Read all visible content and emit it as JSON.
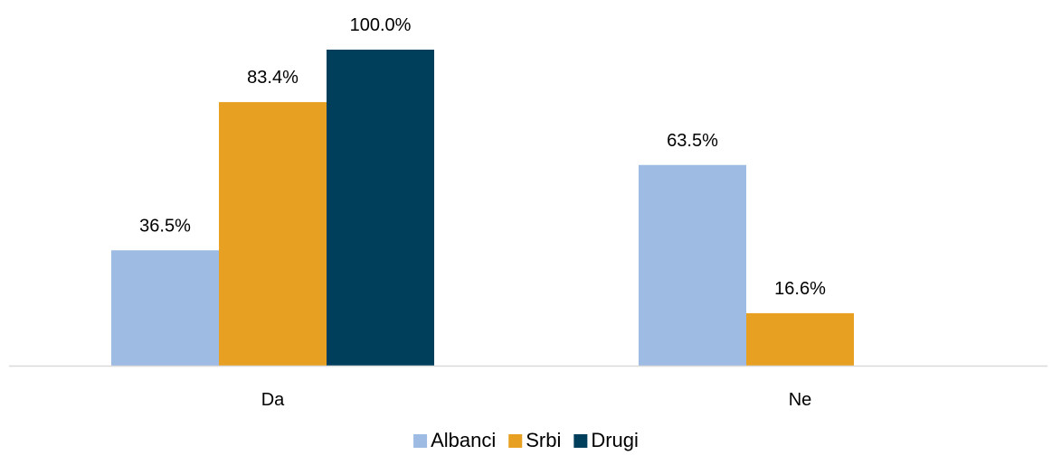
{
  "chart_data": {
    "type": "bar",
    "categories": [
      "Da",
      "Ne"
    ],
    "series": [
      {
        "name": "Albanci",
        "values": [
          36.5,
          63.5
        ],
        "labels": [
          "36.5%",
          "63.5%"
        ],
        "color": "#9dbbe3"
      },
      {
        "name": "Srbi",
        "values": [
          83.4,
          16.6
        ],
        "labels": [
          "83.4%",
          "16.6%"
        ],
        "color": "#e8a023"
      },
      {
        "name": "Drugi",
        "values": [
          100.0,
          null
        ],
        "labels": [
          "100.0%",
          null
        ],
        "color": "#003f5c"
      }
    ],
    "ylim": [
      0,
      100
    ],
    "grid": false,
    "legend_position": "bottom",
    "axis_color": "#d9d9d9"
  }
}
